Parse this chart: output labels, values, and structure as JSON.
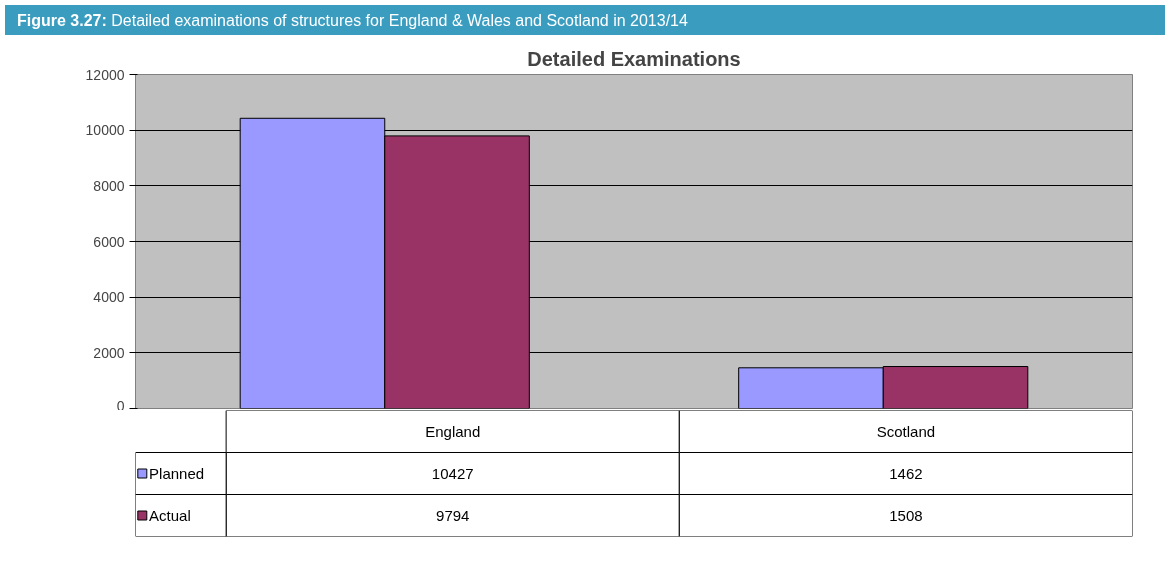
{
  "chart_data": {
    "type": "bar",
    "title": "Detailed Examinations",
    "annotations": [
      "Figure 3.27: Detailed examinations of structures for England & Wales and Scotland in 2013/14"
    ],
    "categories": [
      "England",
      "Scotland"
    ],
    "series": [
      {
        "name": "Planned",
        "color": "#9999ff",
        "values": [
          10427,
          1462
        ]
      },
      {
        "name": "Actual",
        "color": "#993366",
        "values": [
          9794,
          1508
        ]
      }
    ],
    "ylim": [
      0,
      12000
    ],
    "yticks": [
      0,
      2000,
      4000,
      6000,
      8000,
      10000,
      12000
    ],
    "grid": "y",
    "legend": "bottom",
    "data_labels": true
  }
}
